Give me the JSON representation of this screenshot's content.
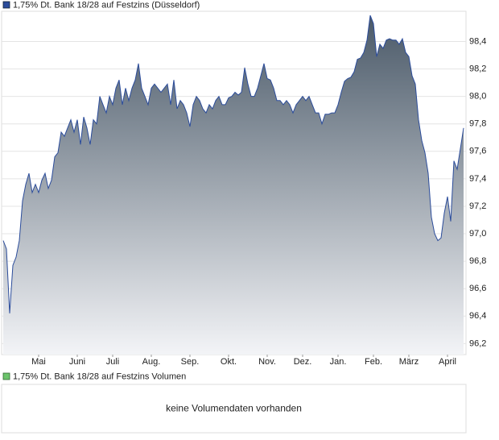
{
  "chart_data": [
    {
      "type": "area",
      "series": [
        {
          "name": "1,75% Dt. Bank 18/28 auf Festzins (Düsseldorf)",
          "color": "#2b4c9b",
          "values": [
            96.95,
            96.89,
            96.42,
            96.77,
            96.83,
            96.95,
            97.24,
            97.36,
            97.44,
            97.3,
            97.36,
            97.3,
            97.39,
            97.44,
            97.33,
            97.39,
            97.56,
            97.59,
            97.74,
            97.71,
            97.77,
            97.83,
            97.74,
            97.83,
            97.65,
            97.85,
            97.77,
            97.65,
            97.83,
            97.8,
            98.0,
            97.94,
            97.88,
            98.0,
            97.94,
            98.06,
            98.12,
            97.94,
            98.06,
            97.97,
            98.06,
            98.12,
            98.24,
            98.06,
            98.0,
            97.94,
            98.06,
            98.09,
            98.06,
            98.03,
            98.06,
            98.09,
            97.94,
            98.12,
            97.91,
            97.97,
            97.94,
            97.88,
            97.78,
            97.94,
            98.0,
            97.97,
            97.91,
            97.88,
            97.94,
            97.91,
            97.97,
            98.0,
            97.94,
            97.94,
            97.99,
            98.0,
            98.03,
            98.01,
            98.03,
            98.21,
            98.09,
            98.0,
            98.0,
            98.06,
            98.15,
            98.24,
            98.13,
            98.12,
            98.06,
            97.97,
            97.97,
            97.94,
            97.97,
            97.94,
            97.88,
            97.94,
            97.97,
            98.0,
            97.97,
            98.0,
            97.94,
            97.88,
            97.88,
            97.8,
            97.87,
            97.87,
            97.88,
            97.88,
            97.94,
            98.03,
            98.11,
            98.13,
            98.14,
            98.18,
            98.27,
            98.28,
            98.32,
            98.41,
            98.59,
            98.53,
            98.29,
            98.38,
            98.35,
            98.41,
            98.42,
            98.41,
            98.41,
            98.38,
            98.42,
            98.32,
            98.29,
            98.15,
            98.09,
            97.83,
            97.68,
            97.59,
            97.44,
            97.12,
            97.0,
            96.95,
            96.97,
            97.15,
            97.27,
            97.09,
            97.53,
            97.47,
            97.62,
            97.77
          ]
        }
      ],
      "x": [
        0,
        1,
        2,
        3,
        4,
        5,
        6,
        7,
        8,
        9,
        10,
        11,
        12,
        13,
        14,
        15,
        16,
        17,
        18,
        19,
        20,
        21,
        22,
        23,
        24,
        25,
        26,
        27,
        28,
        29,
        30,
        31,
        32,
        33,
        34,
        35,
        36,
        37,
        38,
        39,
        40,
        41,
        42,
        43,
        44,
        45,
        46,
        47,
        48,
        49,
        50,
        51,
        52,
        53,
        54,
        55,
        56,
        57,
        58,
        59,
        60,
        61,
        62,
        63,
        64,
        65,
        66,
        67,
        68,
        69,
        70,
        71,
        72,
        73,
        74,
        75,
        76,
        77,
        78,
        79,
        80,
        81,
        82,
        83,
        84,
        85,
        86,
        87,
        88,
        89,
        90,
        91,
        92,
        93,
        94,
        95,
        96,
        97,
        98,
        99,
        100,
        101,
        102,
        103,
        104,
        105,
        106,
        107,
        108,
        109,
        110,
        111,
        112,
        113,
        114,
        115,
        116,
        117,
        118,
        119,
        120,
        121,
        122,
        123,
        124,
        125,
        126,
        127,
        128,
        129,
        130,
        131,
        132,
        133,
        134,
        135,
        136,
        137,
        138,
        139,
        140,
        141,
        142,
        143
      ],
      "xlim": [
        0,
        143
      ],
      "xticks": [
        {
          "value": 11,
          "label": "Mai"
        },
        {
          "value": 23,
          "label": "Juni"
        },
        {
          "value": 34,
          "label": "Juli"
        },
        {
          "value": 46,
          "label": "Aug."
        },
        {
          "value": 58,
          "label": "Sep."
        },
        {
          "value": 70,
          "label": "Okt."
        },
        {
          "value": 82,
          "label": "Nov."
        },
        {
          "value": 93,
          "label": "Dez."
        },
        {
          "value": 104,
          "label": "Jan."
        },
        {
          "value": 115,
          "label": "Feb."
        },
        {
          "value": 126,
          "label": "März"
        },
        {
          "value": 138,
          "label": "April"
        }
      ],
      "ylim": [
        96.12,
        98.62
      ],
      "yticks": [
        {
          "value": 96.2,
          "label": "96,2"
        },
        {
          "value": 96.4,
          "label": "96,4"
        },
        {
          "value": 96.6,
          "label": "96,6"
        },
        {
          "value": 96.8,
          "label": "96,8"
        },
        {
          "value": 97.0,
          "label": "97,0"
        },
        {
          "value": 97.2,
          "label": "97,2"
        },
        {
          "value": 97.4,
          "label": "97,4"
        },
        {
          "value": 97.6,
          "label": "97,6"
        },
        {
          "value": 97.8,
          "label": "97,8"
        },
        {
          "value": 98.0,
          "label": "98,0"
        },
        {
          "value": 98.2,
          "label": "98,2"
        },
        {
          "value": 98.4,
          "label": "98,4"
        }
      ],
      "grid": true
    },
    {
      "type": "bar",
      "series": [
        {
          "name": "1,75% Dt. Bank 18/28 auf Festzins Volumen",
          "color": "#6cc46c",
          "values": []
        }
      ],
      "message": "keine Volumendaten vorhanden"
    }
  ]
}
